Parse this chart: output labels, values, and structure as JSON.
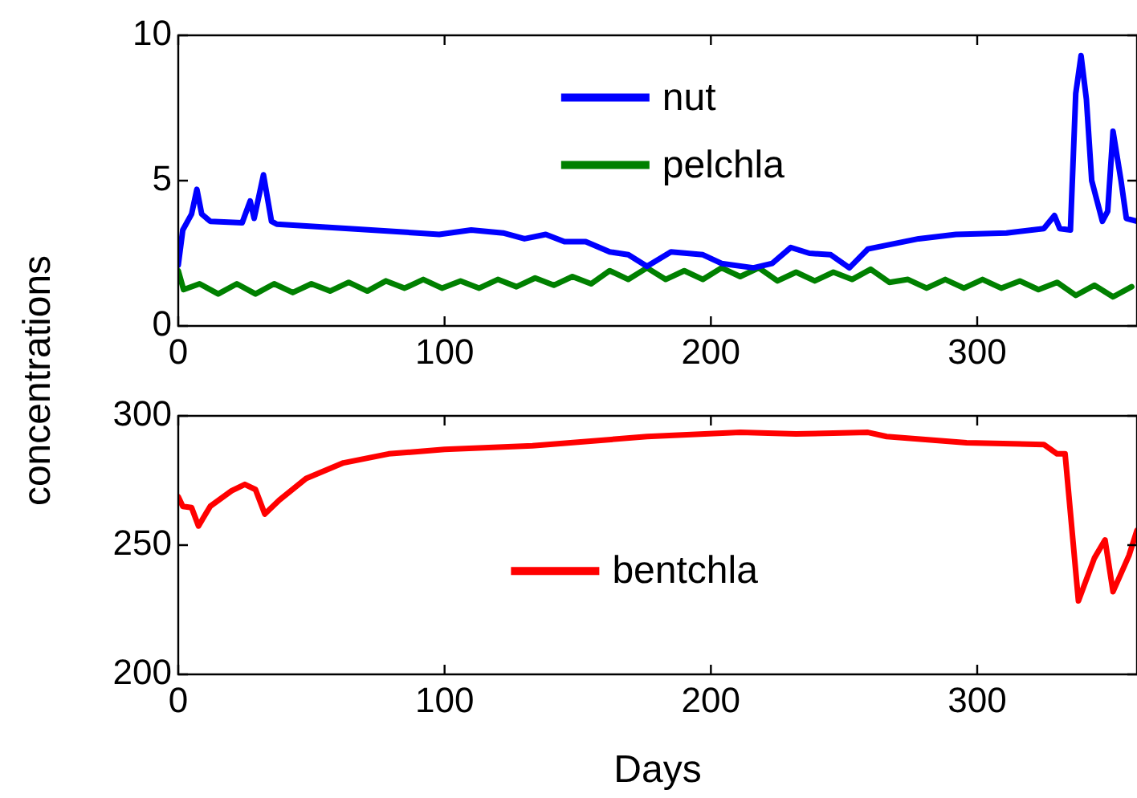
{
  "chart_data": [
    {
      "type": "line",
      "ylabel": "concentrations",
      "xlim": [
        0,
        360
      ],
      "xticks": [
        0,
        100,
        200,
        300
      ],
      "ylim": [
        0,
        10
      ],
      "yticks": [
        0,
        5,
        10
      ],
      "grid": false,
      "legend": "top",
      "marker": "none",
      "line_style": "solid",
      "series": [
        {
          "name": "nut",
          "color": "#0000ff",
          "x": [
            0,
            1.7,
            5,
            7,
            8.8,
            12,
            24,
            27,
            28.5,
            32,
            35,
            37,
            64,
            98,
            110,
            122,
            130,
            138,
            145,
            153,
            162,
            169,
            176,
            185,
            197,
            204,
            216,
            223,
            230,
            237,
            245,
            252,
            259,
            278,
            292,
            311,
            325,
            329,
            331,
            335,
            337,
            339,
            341,
            343,
            347,
            349,
            351,
            354,
            356,
            360
          ],
          "values": [
            2.1,
            3.3,
            3.85,
            4.7,
            3.85,
            3.6,
            3.55,
            4.3,
            3.7,
            5.2,
            3.6,
            3.5,
            3.35,
            3.15,
            3.3,
            3.2,
            3.0,
            3.15,
            2.9,
            2.9,
            2.55,
            2.45,
            2.05,
            2.55,
            2.45,
            2.15,
            2.0,
            2.15,
            2.7,
            2.5,
            2.45,
            2.0,
            2.65,
            3.0,
            3.15,
            3.2,
            3.35,
            3.8,
            3.35,
            3.3,
            8.0,
            9.3,
            7.8,
            5.0,
            3.6,
            3.95,
            6.7,
            5.0,
            3.7,
            3.6
          ]
        },
        {
          "name": "pelchla",
          "color": "#008000",
          "x": [
            0,
            2,
            8,
            15,
            22,
            29,
            36,
            43,
            50,
            57,
            64,
            71,
            78,
            85,
            92,
            99,
            106,
            113,
            120,
            127,
            134,
            141,
            148,
            155,
            162,
            169,
            176,
            183,
            190,
            197,
            204,
            211,
            218,
            225,
            232,
            239,
            246,
            253,
            260,
            267,
            274,
            281,
            288,
            295,
            302,
            309,
            316,
            323,
            330,
            337,
            344,
            351,
            358
          ],
          "values": [
            1.9,
            1.25,
            1.45,
            1.1,
            1.45,
            1.1,
            1.45,
            1.15,
            1.45,
            1.2,
            1.5,
            1.2,
            1.55,
            1.3,
            1.6,
            1.3,
            1.55,
            1.3,
            1.6,
            1.35,
            1.65,
            1.4,
            1.7,
            1.45,
            1.9,
            1.6,
            2.0,
            1.6,
            1.9,
            1.6,
            2.0,
            1.7,
            2.0,
            1.55,
            1.85,
            1.55,
            1.85,
            1.6,
            1.95,
            1.5,
            1.6,
            1.3,
            1.6,
            1.3,
            1.6,
            1.3,
            1.55,
            1.25,
            1.5,
            1.05,
            1.4,
            1.0,
            1.35
          ]
        }
      ]
    },
    {
      "type": "line",
      "xlabel": "Days",
      "xlim": [
        0,
        360
      ],
      "xticks": [
        0,
        100,
        200,
        300
      ],
      "ylim": [
        200,
        300
      ],
      "yticks": [
        200,
        250,
        300
      ],
      "grid": false,
      "legend": "center",
      "marker": "none",
      "line_style": "solid",
      "series": [
        {
          "name": "bentchla",
          "color": "#ff0000",
          "x": [
            0,
            1.7,
            5,
            7.6,
            12,
            20,
            25,
            29,
            32.5,
            38,
            48,
            62,
            79,
            100,
            133,
            176,
            211,
            232,
            259,
            266,
            296,
            325,
            330,
            333,
            338,
            344,
            348,
            351,
            357,
            360
          ],
          "values": [
            268.7,
            265,
            264.5,
            257.4,
            265,
            271,
            273.5,
            271.5,
            262,
            267.5,
            275.8,
            281.8,
            285.3,
            287,
            288.4,
            292,
            293.6,
            293,
            293.6,
            292,
            289.6,
            288.9,
            285.3,
            285.3,
            228.4,
            245,
            252,
            232,
            246,
            255.7
          ]
        }
      ]
    }
  ]
}
